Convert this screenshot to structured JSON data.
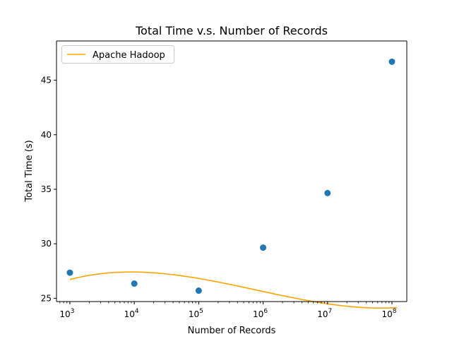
{
  "chart_data": {
    "type": "scatter",
    "title": "Total Time v.s. Number of Records",
    "xlabel": "Number of Records",
    "ylabel": "Total Time (s)",
    "x_scale": "log",
    "y_scale": "linear",
    "xlim": [
      620,
      170000000
    ],
    "ylim": [
      24.7,
      48.6
    ],
    "x_ticks": [
      1000,
      10000,
      100000,
      1000000,
      10000000,
      100000000
    ],
    "x_tick_labels": [
      {
        "base": "10",
        "exp": "3"
      },
      {
        "base": "10",
        "exp": "4"
      },
      {
        "base": "10",
        "exp": "5"
      },
      {
        "base": "10",
        "exp": "6"
      },
      {
        "base": "10",
        "exp": "7"
      },
      {
        "base": "10",
        "exp": "8"
      }
    ],
    "y_ticks": [
      25,
      30,
      35,
      40,
      45
    ],
    "y_tick_labels": [
      "25",
      "30",
      "35",
      "40",
      "45"
    ],
    "grid": false,
    "legend_position": "top-left",
    "points": {
      "color": "#1f77b4",
      "x": [
        1000,
        10000,
        100000,
        1000000,
        10000000,
        100000000
      ],
      "y": [
        27.35,
        26.35,
        25.7,
        29.65,
        34.65,
        46.7
      ]
    },
    "series": [
      {
        "name": "Apache Hadoop",
        "color": "#ffa500",
        "fit": "cubic polynomial in log10(x)",
        "coefficients": [
          26.72,
          1.56,
          -3.27,
          1.13
        ],
        "x_range": [
          1000,
          120000000
        ]
      }
    ]
  }
}
